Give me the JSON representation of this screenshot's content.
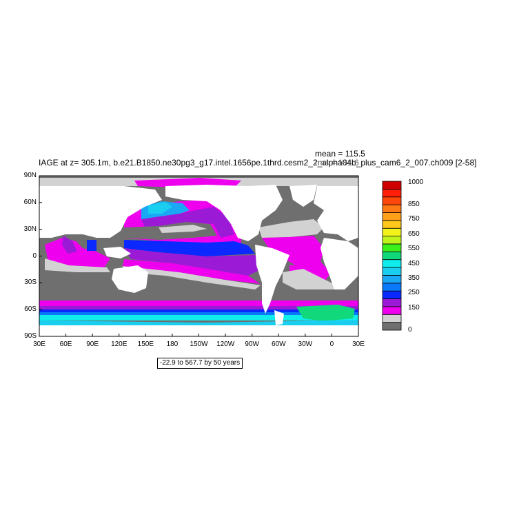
{
  "title": "IAGE at z= 305.1m, b.e21.B1850.ne30pg3_g17.intel.1656pe.1thrd.cesm2_2_alpha04b_plus_cam6_2_007.ch009 [2-58]",
  "stats": {
    "mean": "mean = 115.5",
    "rms": "rms = 181.6"
  },
  "subtitle": "-22.9 to 567.7 by 50 years",
  "lat_ticks": [
    "90N",
    "60N",
    "30N",
    "0",
    "30S",
    "60S",
    "90S"
  ],
  "lon_ticks": [
    "30E",
    "60E",
    "90E",
    "120E",
    "150E",
    "180",
    "150W",
    "120W",
    "90W",
    "60W",
    "30W",
    "0",
    "30E"
  ],
  "colorbar": {
    "colors": [
      "#6f6f6f",
      "#d2d2d2",
      "#ee00ee",
      "#9a1ad6",
      "#0a28ff",
      "#0a78f8",
      "#1aa8f4",
      "#1acef0",
      "#10ecec",
      "#12d87c",
      "#3cf01c",
      "#c0f21c",
      "#f4f21c",
      "#ffc81a",
      "#ffa01a",
      "#ff7814",
      "#ff460c",
      "#ff1e0a",
      "#d00000"
    ],
    "labels": [
      "0",
      "150",
      "250",
      "350",
      "450",
      "550",
      "650",
      "750",
      "850",
      "1000"
    ]
  },
  "land_color": "#ffffff",
  "colors": {
    "gray_dark": "#6f6f6f",
    "gray_light": "#d2d2d2",
    "magenta": "#ee00ee",
    "purple": "#9a1ad6",
    "blue": "#0a28ff",
    "azure": "#0a78f8",
    "cyan": "#10ecec",
    "green": "#12d87c"
  }
}
